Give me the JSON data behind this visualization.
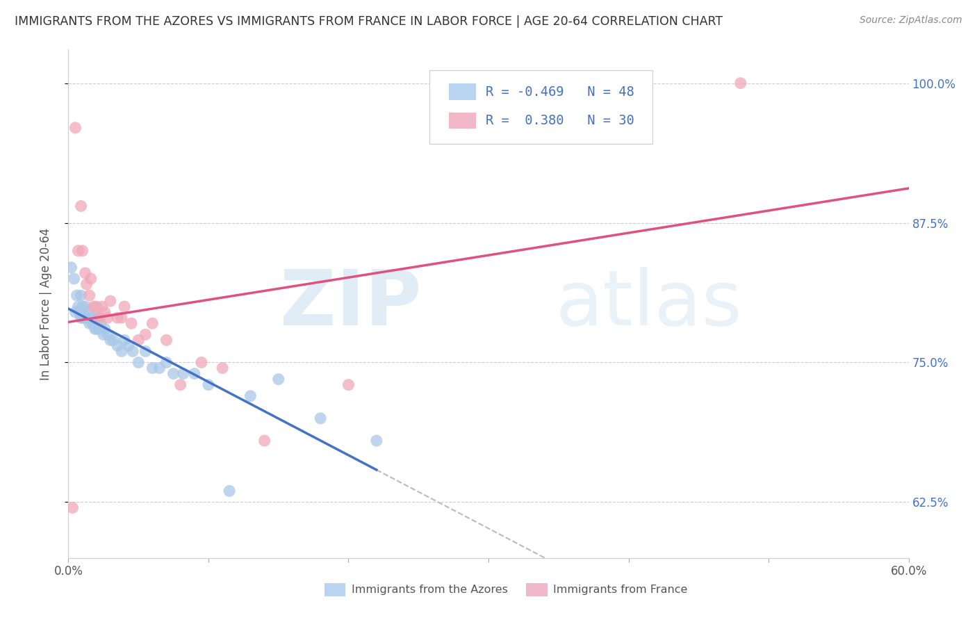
{
  "title": "IMMIGRANTS FROM THE AZORES VS IMMIGRANTS FROM FRANCE IN LABOR FORCE | AGE 20-64 CORRELATION CHART",
  "source": "Source: ZipAtlas.com",
  "ylabel": "In Labor Force | Age 20-64",
  "xlim": [
    0.0,
    0.6
  ],
  "ylim": [
    0.575,
    1.03
  ],
  "xtick_positions": [
    0.0,
    0.1,
    0.2,
    0.3,
    0.4,
    0.5,
    0.6
  ],
  "xticklabels": [
    "0.0%",
    "",
    "",
    "",
    "",
    "",
    "60.0%"
  ],
  "ytick_positions": [
    0.625,
    0.75,
    0.875,
    1.0
  ],
  "ytick_labels": [
    "62.5%",
    "75.0%",
    "87.5%",
    "100.0%"
  ],
  "R_azores": -0.469,
  "N_azores": 48,
  "R_france": 0.38,
  "N_france": 30,
  "color_azores": "#a8c8e8",
  "color_france": "#f0a8b8",
  "line_color_azores": "#4472c4",
  "line_color_france": "#e05080",
  "legend_box_color_azores": "#b8d4f0",
  "legend_box_color_france": "#f0b8c8",
  "azores_x": [
    0.002,
    0.004,
    0.005,
    0.006,
    0.007,
    0.008,
    0.009,
    0.009,
    0.01,
    0.01,
    0.011,
    0.012,
    0.013,
    0.014,
    0.015,
    0.015,
    0.016,
    0.017,
    0.018,
    0.019,
    0.02,
    0.021,
    0.022,
    0.023,
    0.025,
    0.026,
    0.028,
    0.03,
    0.032,
    0.035,
    0.038,
    0.04,
    0.043,
    0.046,
    0.05,
    0.055,
    0.06,
    0.065,
    0.07,
    0.075,
    0.082,
    0.09,
    0.1,
    0.115,
    0.13,
    0.15,
    0.18,
    0.22
  ],
  "azores_y": [
    0.835,
    0.825,
    0.795,
    0.81,
    0.8,
    0.795,
    0.79,
    0.81,
    0.79,
    0.8,
    0.79,
    0.8,
    0.79,
    0.795,
    0.785,
    0.79,
    0.79,
    0.785,
    0.79,
    0.78,
    0.78,
    0.79,
    0.78,
    0.785,
    0.775,
    0.78,
    0.775,
    0.77,
    0.77,
    0.765,
    0.76,
    0.77,
    0.765,
    0.76,
    0.75,
    0.76,
    0.745,
    0.745,
    0.75,
    0.74,
    0.74,
    0.74,
    0.73,
    0.635,
    0.72,
    0.735,
    0.7,
    0.68
  ],
  "france_x": [
    0.003,
    0.005,
    0.007,
    0.009,
    0.01,
    0.012,
    0.013,
    0.015,
    0.016,
    0.018,
    0.02,
    0.022,
    0.024,
    0.026,
    0.028,
    0.03,
    0.035,
    0.038,
    0.04,
    0.045,
    0.05,
    0.055,
    0.06,
    0.07,
    0.08,
    0.095,
    0.11,
    0.14,
    0.2,
    0.48
  ],
  "france_y": [
    0.62,
    0.96,
    0.85,
    0.89,
    0.85,
    0.83,
    0.82,
    0.81,
    0.825,
    0.8,
    0.8,
    0.79,
    0.8,
    0.795,
    0.79,
    0.805,
    0.79,
    0.79,
    0.8,
    0.785,
    0.77,
    0.775,
    0.785,
    0.77,
    0.73,
    0.75,
    0.745,
    0.68,
    0.73,
    1.0
  ],
  "azores_line_x_end": 0.22,
  "dash_line_x_end": 0.6,
  "watermark_zip": "ZIP",
  "watermark_atlas": "atlas"
}
